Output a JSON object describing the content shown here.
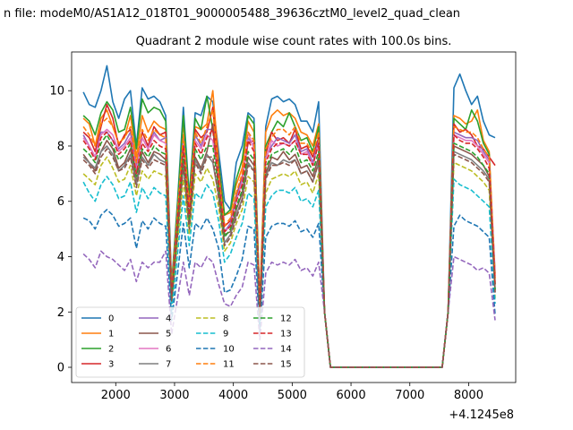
{
  "figure": {
    "suptitle": "n file: modeM0/AS1A12_018T01_9000005488_39636cztM0_level2_quad_clean",
    "title": "Quadrant 2 module wise count rates with 100.0s bins.",
    "x_offset_label": "+4.1245e8"
  },
  "chart_data": {
    "type": "line",
    "title": "Quadrant 2 module wise count rates with 100.0s bins.",
    "xlabel": "",
    "ylabel": "",
    "x_offset": "+4.1245e8",
    "xlim": [
      1250,
      8800
    ],
    "ylim": [
      -0.55,
      11.4
    ],
    "xticks": [
      2000,
      3000,
      4000,
      5000,
      6000,
      7000,
      8000
    ],
    "yticks": [
      0,
      2,
      4,
      6,
      8,
      10
    ],
    "grid": false,
    "legend_position": "lower-left",
    "x": [
      1450,
      1550,
      1650,
      1750,
      1850,
      1950,
      2050,
      2150,
      2250,
      2350,
      2450,
      2550,
      2650,
      2750,
      2850,
      2950,
      3050,
      3150,
      3250,
      3350,
      3450,
      3550,
      3650,
      3750,
      3850,
      3950,
      4050,
      4150,
      4250,
      4350,
      4450,
      4550,
      4650,
      4750,
      4850,
      4950,
      5050,
      5150,
      5250,
      5350,
      5450,
      5550,
      5650,
      5750,
      5850,
      5950,
      6050,
      6150,
      6250,
      6350,
      6450,
      6550,
      6650,
      6750,
      6850,
      6950,
      7050,
      7150,
      7250,
      7350,
      7450,
      7550,
      7650,
      7750,
      7850,
      7950,
      8050,
      8150,
      8250,
      8350,
      8450
    ],
    "series": [
      {
        "name": "0",
        "color": "#1f77b4",
        "dash": "solid",
        "values": [
          9.95,
          9.5,
          9.4,
          10.0,
          10.9,
          9.6,
          9.0,
          9.7,
          10.0,
          8.0,
          10.1,
          9.7,
          9.8,
          9.6,
          9.1,
          3.0,
          6.0,
          9.4,
          6.2,
          9.2,
          9.1,
          9.8,
          9.6,
          7.8,
          6.0,
          5.7,
          7.4,
          8.0,
          9.2,
          9.0,
          2.0,
          8.7,
          9.7,
          9.8,
          9.6,
          9.7,
          9.5,
          8.9,
          8.9,
          8.5,
          9.6,
          2.0,
          0,
          0,
          0,
          0,
          0,
          0,
          0,
          0,
          0,
          0,
          0,
          0,
          0,
          0,
          0,
          0,
          0,
          0,
          0,
          0,
          2.0,
          10.1,
          10.6,
          10.0,
          9.5,
          9.8,
          8.9,
          8.4,
          8.3
        ]
      },
      {
        "name": "1",
        "color": "#ff7f0e",
        "dash": "solid",
        "values": [
          9.0,
          8.8,
          8.0,
          9.0,
          9.3,
          8.7,
          8.1,
          8.3,
          9.1,
          7.6,
          9.1,
          8.5,
          8.9,
          8.7,
          8.6,
          2.9,
          5.8,
          8.9,
          6.0,
          8.7,
          8.6,
          8.8,
          10.0,
          7.4,
          5.5,
          5.6,
          6.6,
          7.2,
          8.9,
          8.5,
          2.4,
          8.5,
          9.1,
          9.3,
          9.1,
          9.2,
          9.0,
          8.5,
          8.4,
          8.0,
          8.8,
          2.0,
          0,
          0,
          0,
          0,
          0,
          0,
          0,
          0,
          0,
          0,
          0,
          0,
          0,
          0,
          0,
          0,
          0,
          0,
          0,
          0,
          2.0,
          9.1,
          9.0,
          8.8,
          8.9,
          9.3,
          8.2,
          7.8,
          3.3
        ]
      },
      {
        "name": "2",
        "color": "#2ca02c",
        "dash": "solid",
        "values": [
          9.1,
          8.9,
          8.4,
          9.2,
          9.6,
          9.3,
          8.5,
          8.6,
          9.4,
          7.9,
          9.7,
          9.2,
          9.4,
          9.3,
          8.9,
          2.8,
          5.9,
          9.1,
          6.1,
          9.0,
          8.6,
          9.8,
          8.6,
          7.4,
          5.5,
          5.7,
          6.8,
          7.5,
          9.1,
          8.8,
          2.2,
          8.0,
          8.5,
          8.9,
          8.7,
          9.2,
          8.7,
          8.2,
          8.3,
          7.8,
          8.7,
          2.0,
          0,
          0,
          0,
          0,
          0,
          0,
          0,
          0,
          0,
          0,
          0,
          0,
          0,
          0,
          0,
          0,
          0,
          0,
          0,
          0,
          2.0,
          9.0,
          8.8,
          8.6,
          9.3,
          8.9,
          8.1,
          7.7,
          3.0
        ]
      },
      {
        "name": "3",
        "color": "#d62728",
        "dash": "solid",
        "values": [
          8.5,
          8.3,
          7.8,
          8.7,
          9.5,
          9.0,
          8.0,
          8.4,
          8.6,
          7.3,
          8.5,
          8.0,
          8.7,
          8.4,
          8.5,
          2.6,
          5.4,
          8.2,
          5.8,
          8.6,
          8.3,
          8.5,
          9.4,
          7.1,
          5.1,
          5.3,
          6.2,
          6.9,
          8.1,
          8.2,
          2.0,
          7.7,
          8.5,
          8.2,
          8.3,
          8.1,
          8.6,
          7.9,
          8.0,
          7.6,
          8.3,
          2.0,
          0,
          0,
          0,
          0,
          0,
          0,
          0,
          0,
          0,
          0,
          0,
          0,
          0,
          0,
          0,
          0,
          0,
          0,
          0,
          0,
          2.0,
          8.8,
          8.5,
          8.6,
          8.4,
          8.0,
          7.9,
          7.6,
          7.3
        ]
      },
      {
        "name": "4",
        "color": "#9467bd",
        "dash": "solid",
        "values": [
          8.4,
          8.0,
          7.6,
          8.5,
          8.5,
          8.2,
          7.9,
          8.1,
          8.5,
          7.2,
          8.3,
          7.9,
          8.5,
          8.2,
          8.3,
          2.7,
          5.5,
          8.3,
          5.6,
          8.4,
          8.0,
          8.6,
          8.6,
          6.9,
          4.9,
          5.2,
          6.1,
          6.8,
          8.3,
          8.0,
          2.1,
          7.6,
          8.0,
          8.3,
          8.2,
          8.1,
          8.4,
          7.8,
          7.9,
          7.4,
          8.2,
          2.0,
          0,
          0,
          0,
          0,
          0,
          0,
          0,
          0,
          0,
          0,
          0,
          0,
          0,
          0,
          0,
          0,
          0,
          0,
          0,
          0,
          2.0,
          8.5,
          8.4,
          8.3,
          8.3,
          8.2,
          7.8,
          7.5,
          3.4
        ]
      },
      {
        "name": "5",
        "color": "#8c564b",
        "dash": "solid",
        "values": [
          7.7,
          7.4,
          7.1,
          7.8,
          8.2,
          7.9,
          7.2,
          7.4,
          7.9,
          6.7,
          7.8,
          7.4,
          7.8,
          7.7,
          7.5,
          2.5,
          4.9,
          7.4,
          5.2,
          7.6,
          7.2,
          7.8,
          8.8,
          6.4,
          4.8,
          4.9,
          5.7,
          6.3,
          7.6,
          7.3,
          1.9,
          7.0,
          7.6,
          7.5,
          7.8,
          7.5,
          7.7,
          7.2,
          7.3,
          6.9,
          7.6,
          2.0,
          0,
          0,
          0,
          0,
          0,
          0,
          0,
          0,
          0,
          0,
          0,
          0,
          0,
          0,
          0,
          0,
          0,
          0,
          0,
          0,
          2.0,
          8.0,
          7.9,
          7.8,
          7.7,
          7.5,
          7.3,
          6.9,
          2.8
        ]
      },
      {
        "name": "6",
        "color": "#e377c2",
        "dash": "solid",
        "values": [
          8.3,
          8.0,
          7.6,
          8.4,
          8.6,
          8.4,
          7.8,
          8.0,
          8.3,
          7.1,
          8.3,
          7.9,
          8.4,
          8.2,
          8.1,
          2.6,
          5.3,
          8.1,
          5.5,
          8.2,
          7.9,
          8.4,
          8.2,
          6.8,
          4.9,
          5.1,
          6.0,
          6.7,
          8.5,
          7.9,
          2.0,
          7.5,
          8.2,
          8.0,
          8.1,
          8.0,
          8.2,
          7.7,
          7.8,
          7.3,
          8.1,
          2.0,
          0,
          0,
          0,
          0,
          0,
          0,
          0,
          0,
          0,
          0,
          0,
          0,
          0,
          0,
          0,
          0,
          0,
          0,
          0,
          0,
          2.0,
          8.4,
          8.3,
          8.2,
          8.2,
          8.0,
          7.7,
          7.4,
          3.2
        ]
      },
      {
        "name": "7",
        "color": "#7f7f7f",
        "dash": "solid",
        "values": [
          7.6,
          7.4,
          7.2,
          7.8,
          8.0,
          7.7,
          7.1,
          7.3,
          7.7,
          6.6,
          7.6,
          7.3,
          7.7,
          7.5,
          7.4,
          2.4,
          4.8,
          7.3,
          5.1,
          7.5,
          7.1,
          7.7,
          7.4,
          6.2,
          4.5,
          4.8,
          5.5,
          6.1,
          7.4,
          7.1,
          1.8,
          6.9,
          7.4,
          7.3,
          7.5,
          7.4,
          7.5,
          7.0,
          7.1,
          6.7,
          7.4,
          2.0,
          0,
          0,
          0,
          0,
          0,
          0,
          0,
          0,
          0,
          0,
          0,
          0,
          0,
          0,
          0,
          0,
          0,
          0,
          0,
          0,
          2.0,
          7.8,
          7.7,
          7.6,
          7.5,
          7.3,
          7.1,
          6.8,
          2.7
        ]
      },
      {
        "name": "8",
        "color": "#bcbd22",
        "dash": "dashed",
        "values": [
          7.0,
          6.8,
          6.6,
          7.3,
          7.6,
          7.2,
          6.7,
          6.8,
          7.3,
          6.2,
          7.1,
          6.8,
          7.1,
          7.0,
          6.9,
          2.3,
          4.5,
          6.8,
          4.8,
          7.0,
          6.7,
          7.2,
          6.8,
          5.8,
          4.2,
          4.5,
          5.2,
          5.7,
          6.9,
          6.7,
          1.7,
          6.3,
          6.8,
          6.9,
          7.0,
          6.9,
          7.1,
          6.6,
          6.7,
          6.3,
          7.0,
          2.0,
          0,
          0,
          0,
          0,
          0,
          0,
          0,
          0,
          0,
          0,
          0,
          0,
          0,
          0,
          0,
          0,
          0,
          0,
          0,
          0,
          2.0,
          7.4,
          7.3,
          7.2,
          7.1,
          6.9,
          6.7,
          6.4,
          2.5
        ]
      },
      {
        "name": "9",
        "color": "#17becf",
        "dash": "dashed",
        "values": [
          6.7,
          6.3,
          6.0,
          6.6,
          6.9,
          6.6,
          6.1,
          6.2,
          6.7,
          5.6,
          6.5,
          6.1,
          6.5,
          6.3,
          6.2,
          2.0,
          4.1,
          6.2,
          4.4,
          6.3,
          6.1,
          6.6,
          6.3,
          5.3,
          3.8,
          4.1,
          4.7,
          5.2,
          6.3,
          6.1,
          1.5,
          5.8,
          6.2,
          6.4,
          6.4,
          6.3,
          6.5,
          6.0,
          6.1,
          5.8,
          6.4,
          2.0,
          0,
          0,
          0,
          0,
          0,
          0,
          0,
          0,
          0,
          0,
          0,
          0,
          0,
          0,
          0,
          0,
          0,
          0,
          0,
          0,
          2.0,
          6.8,
          6.6,
          6.5,
          6.4,
          6.2,
          6.0,
          5.8,
          2.3
        ]
      },
      {
        "name": "10",
        "color": "#1f77b4",
        "dash": "dashed",
        "values": [
          5.4,
          5.3,
          5.0,
          5.5,
          5.7,
          5.5,
          5.1,
          5.2,
          5.4,
          4.3,
          5.3,
          5.0,
          5.4,
          5.2,
          5.1,
          1.7,
          3.4,
          5.2,
          3.6,
          5.2,
          5.0,
          5.4,
          5.0,
          4.3,
          2.7,
          2.8,
          3.3,
          3.9,
          5.1,
          5.0,
          1.3,
          4.7,
          5.1,
          5.2,
          5.2,
          5.1,
          5.3,
          4.9,
          5.0,
          4.7,
          5.2,
          2.0,
          0,
          0,
          0,
          0,
          0,
          0,
          0,
          0,
          0,
          0,
          0,
          0,
          0,
          0,
          0,
          0,
          0,
          0,
          0,
          0,
          2.0,
          5.1,
          5.5,
          5.3,
          5.2,
          5.1,
          4.9,
          4.7,
          1.9
        ]
      },
      {
        "name": "11",
        "color": "#ff7f0e",
        "dash": "dashed",
        "values": [
          8.7,
          8.4,
          8.0,
          8.8,
          9.0,
          8.7,
          8.1,
          8.3,
          8.7,
          7.4,
          8.6,
          8.2,
          8.6,
          8.4,
          8.3,
          2.7,
          5.6,
          8.4,
          5.8,
          8.5,
          8.1,
          8.7,
          9.3,
          7.0,
          5.1,
          5.4,
          6.3,
          7.0,
          8.5,
          8.2,
          2.1,
          7.9,
          8.3,
          8.6,
          8.6,
          8.4,
          8.7,
          8.1,
          8.1,
          7.7,
          8.5,
          2.0,
          0,
          0,
          0,
          0,
          0,
          0,
          0,
          0,
          0,
          0,
          0,
          0,
          0,
          0,
          0,
          0,
          0,
          0,
          0,
          0,
          2.0,
          8.7,
          8.6,
          8.5,
          8.5,
          8.3,
          7.9,
          7.6,
          3.2
        ]
      },
      {
        "name": "12",
        "color": "#2ca02c",
        "dash": "dashed",
        "values": [
          7.9,
          7.7,
          7.4,
          8.1,
          8.4,
          8.0,
          7.5,
          7.7,
          8.1,
          6.9,
          7.9,
          7.6,
          8.0,
          7.8,
          7.7,
          2.5,
          5.1,
          7.7,
          5.3,
          7.9,
          7.5,
          8.0,
          8.0,
          6.5,
          4.7,
          5.0,
          5.8,
          6.4,
          7.8,
          7.5,
          1.9,
          7.2,
          7.7,
          7.8,
          7.9,
          7.7,
          8.0,
          7.4,
          7.5,
          7.1,
          7.8,
          2.0,
          0,
          0,
          0,
          0,
          0,
          0,
          0,
          0,
          0,
          0,
          0,
          0,
          0,
          0,
          0,
          0,
          0,
          0,
          0,
          0,
          2.0,
          8.1,
          8.0,
          7.9,
          7.8,
          7.6,
          7.3,
          7.0,
          2.8
        ]
      },
      {
        "name": "13",
        "color": "#d62728",
        "dash": "dashed",
        "values": [
          8.2,
          7.9,
          7.5,
          8.3,
          8.5,
          8.2,
          7.7,
          7.9,
          8.2,
          7.0,
          8.1,
          7.8,
          8.2,
          8.0,
          7.9,
          2.6,
          5.3,
          8.0,
          5.5,
          8.1,
          7.7,
          8.3,
          8.6,
          6.7,
          4.9,
          5.1,
          6.0,
          6.6,
          8.2,
          7.8,
          2.0,
          7.4,
          7.9,
          8.1,
          8.1,
          8.0,
          8.2,
          7.7,
          7.7,
          7.3,
          8.1,
          2.0,
          0,
          0,
          0,
          0,
          0,
          0,
          0,
          0,
          0,
          0,
          0,
          0,
          0,
          0,
          0,
          0,
          0,
          0,
          0,
          0,
          2.0,
          8.4,
          8.2,
          8.1,
          8.1,
          7.9,
          7.6,
          7.2,
          3.0
        ]
      },
      {
        "name": "14",
        "color": "#9467bd",
        "dash": "dashed",
        "values": [
          4.1,
          3.9,
          3.6,
          4.2,
          4.0,
          3.9,
          3.7,
          3.5,
          3.9,
          3.1,
          3.8,
          3.6,
          3.8,
          3.8,
          4.2,
          1.2,
          2.5,
          3.8,
          2.6,
          3.8,
          3.6,
          4.0,
          3.8,
          3.0,
          2.3,
          2.2,
          2.6,
          2.9,
          3.8,
          3.7,
          1.0,
          3.4,
          3.8,
          3.7,
          3.8,
          3.7,
          3.9,
          3.5,
          3.6,
          3.3,
          3.8,
          2.0,
          0,
          0,
          0,
          0,
          0,
          0,
          0,
          0,
          0,
          0,
          0,
          0,
          0,
          0,
          0,
          0,
          0,
          0,
          0,
          0,
          2.0,
          4.0,
          3.9,
          3.8,
          3.7,
          3.5,
          3.6,
          3.4,
          1.7
        ]
      },
      {
        "name": "15",
        "color": "#8c564b",
        "dash": "dashed",
        "values": [
          7.5,
          7.3,
          7.0,
          7.6,
          7.9,
          7.6,
          7.1,
          7.2,
          7.6,
          6.5,
          7.5,
          7.2,
          7.5,
          7.4,
          7.3,
          2.4,
          4.8,
          7.3,
          5.0,
          7.4,
          7.0,
          7.6,
          7.6,
          6.1,
          4.4,
          4.7,
          5.4,
          6.0,
          7.3,
          7.1,
          1.8,
          6.8,
          7.3,
          7.3,
          7.4,
          7.3,
          7.5,
          7.0,
          7.1,
          6.7,
          7.4,
          2.0,
          0,
          0,
          0,
          0,
          0,
          0,
          0,
          0,
          0,
          0,
          0,
          0,
          0,
          0,
          0,
          0,
          0,
          0,
          0,
          0,
          2.0,
          7.7,
          7.6,
          7.5,
          7.4,
          7.2,
          7.0,
          6.7,
          2.7
        ]
      }
    ]
  }
}
